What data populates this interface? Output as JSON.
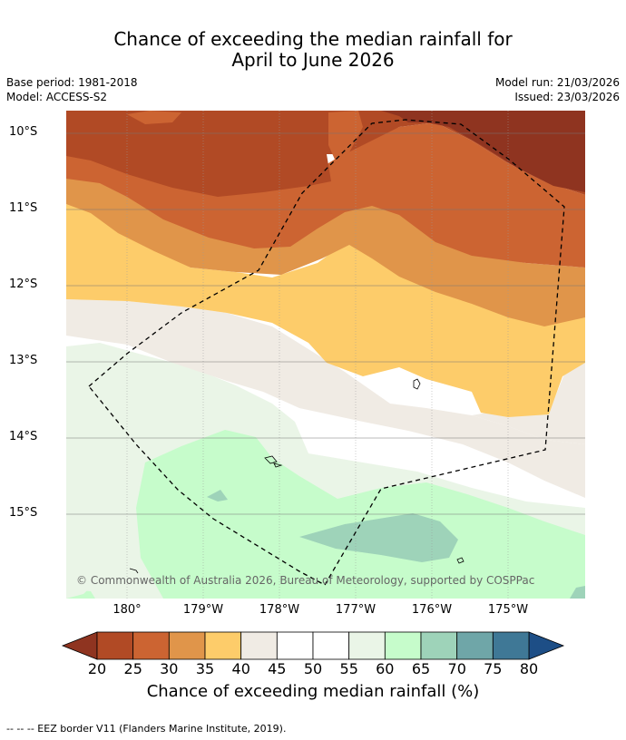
{
  "title": {
    "line1": "Chance of exceeding the median rainfall for",
    "line2": "April to June 2026"
  },
  "meta": {
    "base_period": "Base period: 1981-2018",
    "model": "Model: ACCESS-S2",
    "model_run": "Model run: 21/03/2026",
    "issued": "Issued: 23/03/2026"
  },
  "map": {
    "lat_labels": [
      "10°S",
      "11°S",
      "12°S",
      "13°S",
      "14°S",
      "15°S"
    ],
    "lon_labels": [
      "180°",
      "179°W",
      "178°W",
      "177°W",
      "176°W",
      "175°W"
    ],
    "copyright": "© Commonwealth of Australia 2026, Bureau of Meteorology, supported by COSPPac"
  },
  "colorbar": {
    "ticks": [
      "20",
      "25",
      "30",
      "35",
      "40",
      "45",
      "50",
      "55",
      "60",
      "65",
      "70",
      "75",
      "80"
    ],
    "colors": [
      "#b14a25",
      "#cc6432",
      "#e0954a",
      "#fdcc6a",
      "#f0ebe4",
      "#ffffff",
      "#ffffff",
      "#eaf5e7",
      "#c6fccb",
      "#9ed3b9",
      "#6fa6a8",
      "#3f7896"
    ],
    "under_color": "#8f3420",
    "over_color": "#1d4e86",
    "label": "Chance of exceeding median rainfall (%)"
  },
  "footer": "--  --  -- EEZ border V11 (Flanders Marine Institute, 2019)."
}
